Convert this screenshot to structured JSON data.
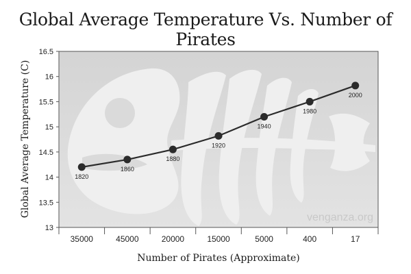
{
  "chart_data": {
    "type": "line",
    "title": "Global Average Temperature Vs. Number of Pirates",
    "xlabel": "Number of Pirates (Approximate)",
    "ylabel": "Global Average Temperature (C)",
    "categories": [
      "35000",
      "45000",
      "20000",
      "15000",
      "5000",
      "400",
      "17"
    ],
    "series": [
      {
        "values": [
          14.2,
          14.35,
          14.55,
          14.82,
          15.2,
          15.5,
          15.82
        ],
        "labels": [
          "1820",
          "1860",
          "1880",
          "1920",
          "1940",
          "1980",
          "2000"
        ]
      }
    ],
    "ylim": [
      13,
      16.5
    ],
    "yticks": [
      "13",
      "13.5",
      "14",
      "14.5",
      "15",
      "15.5",
      "16",
      "16.5"
    ],
    "grid": false,
    "watermark": "venganza.org",
    "background_art": "fish-skeleton",
    "colors": {
      "line": "#2b2b2b",
      "marker": "#2b2b2b",
      "plot_bg": "#dcdcdc",
      "art": "#efefef"
    }
  }
}
